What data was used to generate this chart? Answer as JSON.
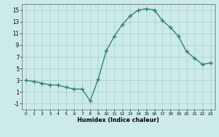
{
  "x": [
    0,
    1,
    2,
    3,
    4,
    5,
    6,
    7,
    8,
    9,
    10,
    11,
    12,
    13,
    14,
    15,
    16,
    17,
    18,
    19,
    20,
    21,
    22,
    23
  ],
  "y": [
    3,
    2.8,
    2.5,
    2.2,
    2.2,
    1.8,
    1.5,
    1.5,
    -0.5,
    3.2,
    8.0,
    10.5,
    12.5,
    14.0,
    15.0,
    15.2,
    15.0,
    13.2,
    12.0,
    10.5,
    7.9,
    6.8,
    5.7,
    6.0
  ],
  "xlim": [
    -0.5,
    23.5
  ],
  "ylim": [
    -2,
    16
  ],
  "yticks": [
    -1,
    1,
    3,
    5,
    7,
    9,
    11,
    13,
    15
  ],
  "xticks": [
    0,
    1,
    2,
    3,
    4,
    5,
    6,
    7,
    8,
    9,
    10,
    11,
    12,
    13,
    14,
    15,
    16,
    17,
    18,
    19,
    20,
    21,
    22,
    23
  ],
  "xlabel": "Humidex (Indice chaleur)",
  "line_color": "#2e7d6e",
  "marker": "+",
  "marker_size": 4,
  "marker_lw": 1.0,
  "bg_color": "#cceaea",
  "grid_color": "#aacfcf",
  "line_width": 1.0
}
